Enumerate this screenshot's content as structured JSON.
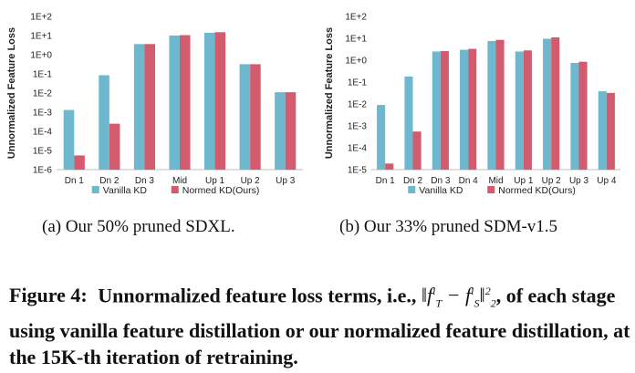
{
  "chart_data": [
    {
      "type": "bar",
      "yscale": "log",
      "ylabel": "Unnormalized Feature Loss",
      "ylim": [
        1e-06,
        100
      ],
      "yticks": [
        1e-06,
        1e-05,
        0.0001,
        0.001,
        0.01,
        0.1,
        1.0,
        10.0,
        100.0
      ],
      "ytick_labels": [
        "1E-6",
        "1E-5",
        "1E-4",
        "1E-3",
        "1E-2",
        "1E-1",
        "1E+0",
        "1E+1",
        "1E+2"
      ],
      "categories": [
        "Dn 1",
        "Dn 2",
        "Dn 3",
        "Mid",
        "Up 1",
        "Up 2",
        "Up 3"
      ],
      "series": [
        {
          "name": "Vanilla KD",
          "color": "#6db8cf",
          "values": [
            0.0013,
            0.085,
            3.6,
            10.0,
            14.0,
            0.32,
            0.011
          ]
        },
        {
          "name": "Normed KD(Ours)",
          "color": "#d25b6d",
          "values": [
            5.5e-06,
            0.00025,
            3.6,
            10.5,
            15.0,
            0.32,
            0.011
          ]
        }
      ],
      "legend": "bottom",
      "grid": false
    },
    {
      "type": "bar",
      "yscale": "log",
      "ylabel": "Unnormalized Feature Loss",
      "ylim": [
        1e-05,
        100
      ],
      "yticks": [
        1e-05,
        0.0001,
        0.001,
        0.01,
        0.1,
        1.0,
        10.0,
        100.0
      ],
      "ytick_labels": [
        "1E-5",
        "1E-4",
        "1E-3",
        "1E-2",
        "1E-1",
        "1E+0",
        "1E+1",
        "1E+2"
      ],
      "categories": [
        "Dn 1",
        "Dn 2",
        "Dn 3",
        "Dn 4",
        "Mid",
        "Up 1",
        "Up 2",
        "Up 3",
        "Up 4"
      ],
      "series": [
        {
          "name": "Vanilla KD",
          "color": "#6db8cf",
          "values": [
            0.009,
            0.18,
            2.5,
            3.0,
            7.5,
            2.5,
            9.5,
            0.75,
            0.038
          ]
        },
        {
          "name": "Normed KD(Ours)",
          "color": "#d25b6d",
          "values": [
            1.9e-05,
            0.00055,
            2.6,
            3.3,
            8.5,
            2.8,
            11.0,
            0.85,
            0.032
          ]
        }
      ],
      "legend": "bottom",
      "grid": false
    }
  ],
  "subcaptions": {
    "a": "(a) Our 50% pruned SDXL.",
    "b": "(b) Our 33% pruned SDM-v1.5"
  },
  "caption": {
    "label": "Figure 4:",
    "text_before": "Unnormalized feature loss terms, i.e.,",
    "text_after": ", of each stage using vanilla feature distillation or our normalized feature distillation, at the 15K-th iteration of retraining.",
    "formula": {
      "f": "f",
      "sup": "i",
      "sub_teacher": "T",
      "sub_student": "S",
      "norm_sub": "2",
      "norm_sup": "2"
    }
  }
}
